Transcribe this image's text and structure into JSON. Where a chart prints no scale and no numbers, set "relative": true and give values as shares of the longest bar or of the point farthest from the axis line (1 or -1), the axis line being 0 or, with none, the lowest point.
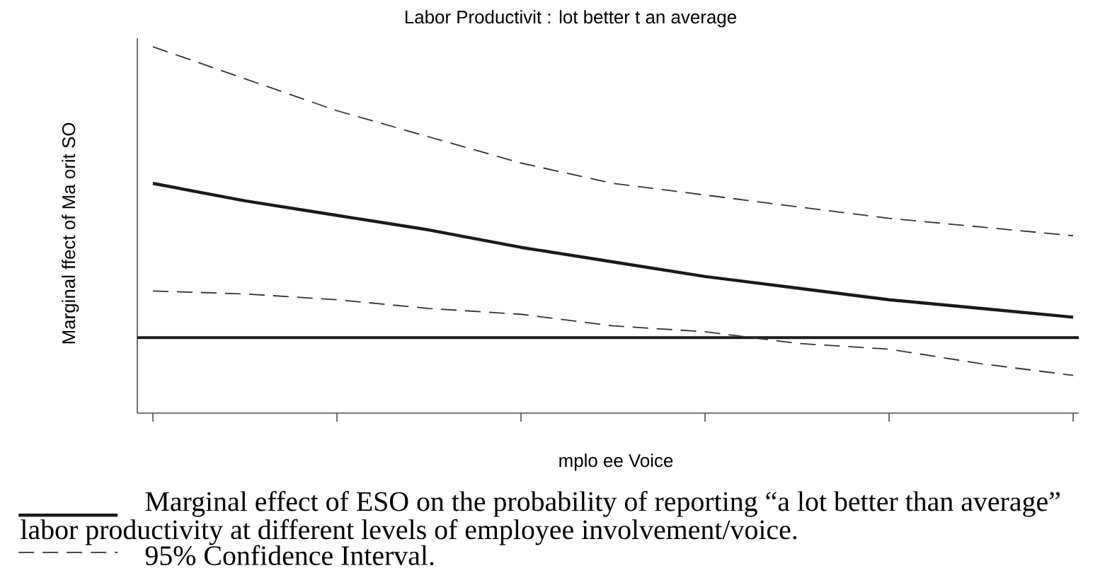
{
  "chart_data": {
    "type": "line",
    "title": "Labor Productivit : lot better t an average",
    "xlabel": "mplo ee Voice",
    "ylabel": "Marginal ffect of Ma orit SO",
    "categories": [
      null,
      null,
      null,
      null,
      null,
      null,
      null,
      null,
      null,
      null,
      null
    ],
    "relative": true,
    "series": [
      {
        "name": "Marginal effect of ESO on the probability of reporting “a lot better than average” labor productivity at different levels of employee involvement/voice.",
        "color": "#1a1a1a",
        "line_style": "solid",
        "values": [
          0.53,
          0.47,
          0.42,
          0.37,
          0.31,
          0.26,
          0.21,
          0.17,
          0.13,
          0.1,
          0.07
        ]
      },
      {
        "name": "95% Confidence Interval.",
        "color": "#333333",
        "line_style": "dashed",
        "values": [
          1,
          0.89,
          0.78,
          0.69,
          0.6,
          0.53,
          0.49,
          0.45,
          0.41,
          0.38,
          0.35
        ]
      },
      {
        "color": "#333333",
        "line_style": "dashed",
        "values": [
          0.16,
          0.15,
          0.13,
          0.1,
          0.08,
          0.04,
          0.02,
          -0.02,
          -0.04,
          -0.09,
          -0.13
        ]
      }
    ],
    "ref_lines": [
      {
        "axis": "y",
        "value": 0,
        "color": "#1a1a1a",
        "line_style": "solid"
      }
    ],
    "legend": "bottom"
  }
}
